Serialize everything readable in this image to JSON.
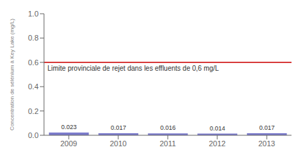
{
  "chart_data": {
    "type": "bar",
    "categories": [
      "2009",
      "2010",
      "2011",
      "2012",
      "2013"
    ],
    "values": [
      0.023,
      0.017,
      0.016,
      0.014,
      0.017
    ],
    "color": "#7b7bcb",
    "ylabel": "Concentration de sélénium à Key Lake (mg/L)",
    "ylim": [
      0,
      1.0
    ],
    "yticks": [
      {
        "value": 0,
        "label": "0.0"
      },
      0.2,
      0.4,
      0.6,
      0.8,
      {
        "value": 1,
        "label": "1.0"
      }
    ],
    "data_labels": true,
    "grid": false,
    "annotations": [
      {
        "type": "hline",
        "y": 0.6,
        "text": "Limite provinciale de rejet dans les effluents de 0,6 mg/L",
        "color": "#cc0000"
      }
    ]
  }
}
